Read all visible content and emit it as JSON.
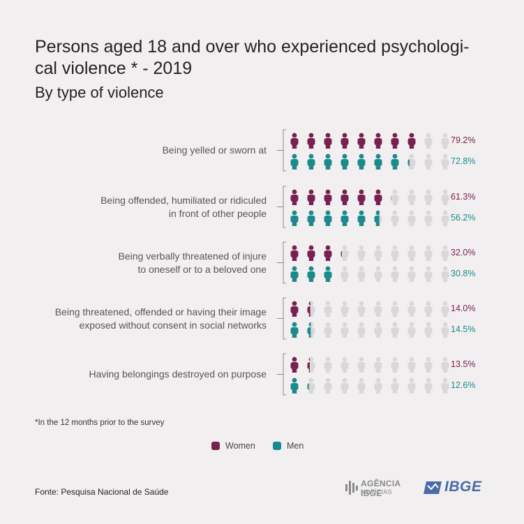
{
  "title": "Persons aged 18 and over who experienced psychological violence * - 2019",
  "title_line1": "Persons aged 18 and over who experienced psychologi-",
  "title_line2": "cal violence * - 2019",
  "subtitle": "By type of violence",
  "footnote": "*In the 12 months prior to the survey",
  "source": "Fonte: Pesquisa Nacional de Saúde",
  "logos": {
    "agencia_line1": "AGÊNCIA IBGE",
    "agencia_line2": "NOTÍCIAS",
    "ibge": "IBGE"
  },
  "colors": {
    "women": "#7a2050",
    "men": "#1a8a8c",
    "empty": "#d9d7d8"
  },
  "chart_data": {
    "type": "pictogram",
    "icons_per_row": 10,
    "unit": "%",
    "categories": [
      "Being yelled or sworn at",
      "Being offended, humiliated or ridiculed in front of other people",
      "Being verbally threatened of injure to oneself or to a beloved one",
      "Being threatened, offended or having their image exposed without consent in social networks",
      "Having belongings destroyed on purpose"
    ],
    "category_lines": [
      [
        "Being yelled or sworn at"
      ],
      [
        "Being offended, humiliated or ridiculed",
        "in front of other people"
      ],
      [
        "Being verbally threatened of injure",
        "to oneself or to a beloved one"
      ],
      [
        "Being threatened, offended or having their image",
        "exposed without consent in social networks"
      ],
      [
        "Having belongings destroyed on purpose"
      ]
    ],
    "series": [
      {
        "name": "Women",
        "values": [
          79.2,
          61.3,
          32.0,
          14.0,
          13.5
        ],
        "labels": [
          "79.2%",
          "61.3%",
          "32.0%",
          "14.0%",
          "13.5%"
        ]
      },
      {
        "name": "Men",
        "values": [
          72.8,
          56.2,
          30.8,
          14.5,
          12.6
        ],
        "labels": [
          "72.8%",
          "56.2%",
          "30.8%",
          "14.5%",
          "12.6%"
        ]
      }
    ],
    "legend": "bottom-center"
  }
}
